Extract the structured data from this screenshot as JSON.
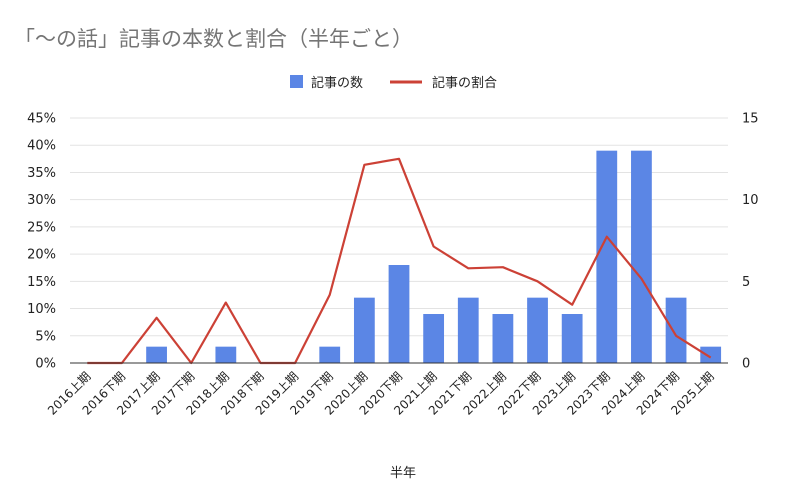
{
  "colors": {
    "bar": "#5b86e5",
    "line": "#cc4136",
    "grid": "#e3e3e3",
    "axis": "#333333",
    "title": "#757575"
  },
  "chart_data": {
    "type": "bar",
    "title": "「〜の話」記事の本数と割合（半年ごと）",
    "xlabel": "半年",
    "ylabel_left": "",
    "ylabel_right": "",
    "legend_position": "top-center",
    "grid": true,
    "categories": [
      "2016上期",
      "2016下期",
      "2017上期",
      "2017下期",
      "2018上期",
      "2018下期",
      "2019上期",
      "2019下期",
      "2020上期",
      "2020下期",
      "2021上期",
      "2021下期",
      "2022上期",
      "2022下期",
      "2023上期",
      "2023下期",
      "2024上期",
      "2024下期",
      "2025上期"
    ],
    "series": [
      {
        "name": "記事の数",
        "type": "bar",
        "axis": "right",
        "values": [
          0,
          0,
          1,
          0,
          1,
          0,
          0,
          1,
          4,
          6,
          3,
          4,
          3,
          4,
          3,
          13,
          13,
          4,
          1
        ]
      },
      {
        "name": "記事の割合",
        "type": "line",
        "axis": "left",
        "values": [
          0,
          0,
          8.3,
          0,
          11.1,
          0,
          0,
          12.5,
          36.4,
          37.5,
          21.4,
          17.4,
          17.6,
          15.0,
          10.7,
          23.2,
          15.5,
          5.0,
          1.0
        ]
      }
    ],
    "y_left": {
      "range": [
        0,
        45
      ],
      "ticks": [
        "0%",
        "5%",
        "10%",
        "15%",
        "20%",
        "25%",
        "30%",
        "35%",
        "40%",
        "45%"
      ]
    },
    "y_right": {
      "range": [
        0,
        15
      ],
      "ticks": [
        "0",
        "5",
        "10",
        "15"
      ]
    }
  }
}
